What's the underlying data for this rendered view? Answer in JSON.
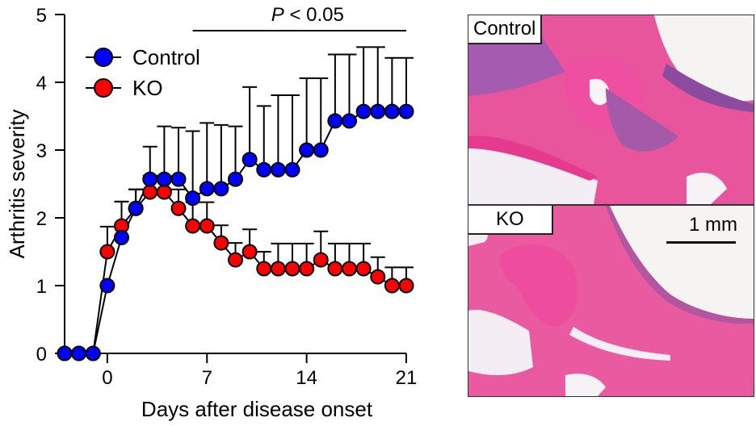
{
  "chart_data": {
    "type": "line",
    "title": "",
    "xlabel": "Days after disease onset",
    "ylabel": "Arthritis severity",
    "xlim": [
      -3,
      21
    ],
    "ylim": [
      0,
      5
    ],
    "xticks": [
      0,
      7,
      14,
      21
    ],
    "yticks": [
      0,
      1,
      2,
      3,
      4,
      5
    ],
    "x": [
      -3,
      -2,
      -1,
      0,
      1,
      2,
      3,
      4,
      5,
      6,
      7,
      8,
      9,
      10,
      11,
      12,
      13,
      14,
      15,
      16,
      17,
      18,
      19,
      20,
      21
    ],
    "series": [
      {
        "name": "Control",
        "color": "#0000ff",
        "values": [
          0,
          0,
          0,
          1.0,
          1.71,
          2.14,
          2.57,
          2.57,
          2.57,
          2.29,
          2.43,
          2.43,
          2.57,
          2.86,
          2.71,
          2.71,
          2.71,
          3.0,
          3.0,
          3.43,
          3.43,
          3.57,
          3.57,
          3.57,
          3.57
        ],
        "error_upper": [
          0,
          0,
          0,
          1.0,
          2.24,
          2.42,
          3.05,
          3.35,
          3.33,
          3.28,
          3.4,
          3.37,
          3.35,
          3.93,
          3.65,
          3.81,
          3.81,
          4.06,
          4.06,
          4.41,
          4.41,
          4.52,
          4.52,
          4.36,
          4.36
        ]
      },
      {
        "name": "KO",
        "color": "#ff0000",
        "values": [
          0,
          0,
          0,
          1.5,
          1.88,
          2.14,
          2.38,
          2.38,
          2.14,
          1.88,
          1.88,
          1.63,
          1.38,
          1.5,
          1.25,
          1.25,
          1.25,
          1.25,
          1.38,
          1.25,
          1.25,
          1.25,
          1.13,
          1.0,
          1.0
        ],
        "error_upper": [
          0,
          0,
          0,
          1.87,
          2.24,
          2.42,
          2.62,
          2.62,
          2.42,
          2.23,
          2.23,
          1.89,
          1.63,
          1.83,
          1.5,
          1.62,
          1.62,
          1.62,
          1.8,
          1.62,
          1.62,
          1.62,
          1.42,
          1.27,
          1.27
        ]
      }
    ],
    "legend": {
      "position": "top-left",
      "entries": [
        "Control",
        "KO"
      ]
    },
    "annotations": [
      {
        "text_italic": "P",
        "text": " < 0.05",
        "x_range": [
          6,
          21
        ]
      }
    ],
    "grid": false
  },
  "histology": {
    "panels": [
      {
        "label": "Control"
      },
      {
        "label": "KO"
      }
    ],
    "scale_bar_label": "1 mm"
  }
}
